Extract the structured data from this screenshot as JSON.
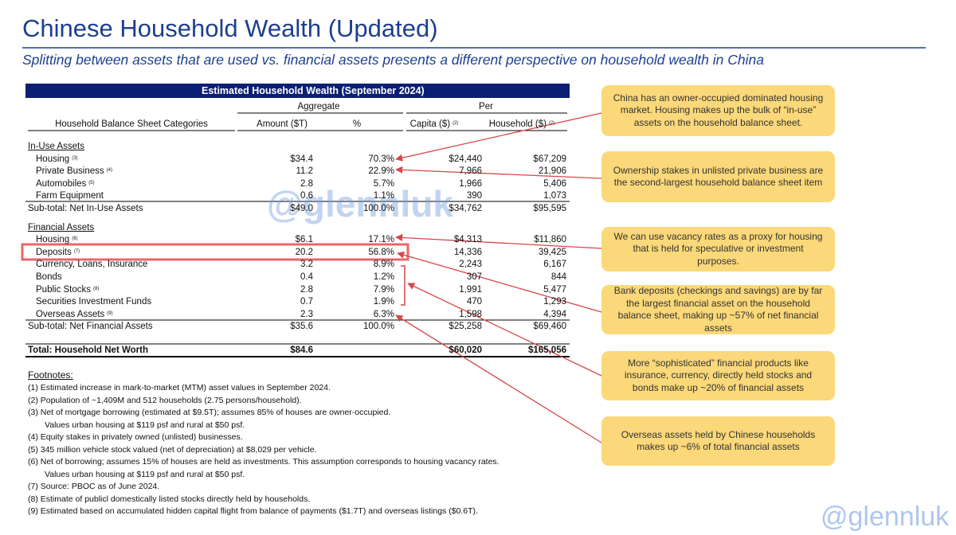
{
  "header": {
    "title": "Chinese Household Wealth (Updated)",
    "subtitle": "Splitting between assets that are used vs. financial assets presents a different perspective on household wealth in China"
  },
  "table": {
    "title": "Estimated Household Wealth (September 2024)",
    "group_headers": [
      "Aggregate",
      "Per"
    ],
    "columns": [
      "Household Balance Sheet Categories",
      "Amount ($T)",
      "%",
      "Capita ($)",
      "Household ($)"
    ],
    "column_notes": [
      null,
      null,
      null,
      "(2)",
      "(2)"
    ],
    "sections": [
      {
        "title": "In-Use Assets",
        "rows": [
          {
            "label": "Housing",
            "note": "(3)",
            "cells": [
              "$34.4",
              "70.3%",
              "$24,440",
              "$67,209"
            ]
          },
          {
            "label": "Private Business",
            "note": "(4)",
            "cells": [
              "11.2",
              "22.9%",
              "7,966",
              "21,906"
            ]
          },
          {
            "label": "Automobiles",
            "note": "(5)",
            "cells": [
              "2.8",
              "5.7%",
              "1,966",
              "5,406"
            ]
          },
          {
            "label": "Farm Equipment",
            "note": null,
            "cells": [
              "0.6",
              "1.1%",
              "390",
              "1,073"
            ]
          }
        ],
        "subtotal": {
          "label": "Sub-total: Net In-Use Assets",
          "cells": [
            "$49.0",
            "100.0%",
            "$34,762",
            "$95,595"
          ]
        }
      },
      {
        "title": "Financial Assets",
        "rows": [
          {
            "label": "Housing",
            "note": "(6)",
            "cells": [
              "$6.1",
              "17.1%",
              "$4,313",
              "$11,860"
            ]
          },
          {
            "label": "Deposits",
            "note": "(7)",
            "cells": [
              "20.2",
              "56.8%",
              "14,336",
              "39,425"
            ]
          },
          {
            "label": "Currency, Loans, Insurance",
            "note": null,
            "cells": [
              "3.2",
              "8.9%",
              "2,243",
              "6,167"
            ]
          },
          {
            "label": "Bonds",
            "note": null,
            "cells": [
              "0.4",
              "1.2%",
              "307",
              "844"
            ]
          },
          {
            "label": "Public Stocks",
            "note": "(8)",
            "cells": [
              "2.8",
              "7.9%",
              "1,991",
              "5,477"
            ]
          },
          {
            "label": "Securities Investment Funds",
            "note": null,
            "cells": [
              "0.7",
              "1.9%",
              "470",
              "1,293"
            ]
          },
          {
            "label": "Overseas Assets",
            "note": "(9)",
            "cells": [
              "2.3",
              "6.3%",
              "1,598",
              "4,394"
            ]
          }
        ],
        "subtotal": {
          "label": "Sub-total: Net Financial Assets",
          "cells": [
            "$35.6",
            "100.0%",
            "$25,258",
            "$69,460"
          ]
        }
      }
    ],
    "total": {
      "label": "Total: Household Net Worth",
      "cells": [
        "$84.6",
        null,
        "$60,020",
        "$165,056"
      ]
    }
  },
  "footnotes": {
    "title": "Footnotes:",
    "items": [
      "(1) Estimated increase in mark-to-market (MTM) asset values in September 2024.",
      "(2) Population of ~1,409M and 512 households (2.75 persons/household).",
      "(3) Net of mortgage borrowing (estimated at $9.5T); assumes 85% of houses are owner-occupied.",
      "Values urban housing at $119 psf and rural at $50 psf.",
      "(4) Equity stakes in privately owned (unlisted) businesses.",
      "(5) 345 million vehicle stock valued (net of depreciation) at $8,029 per vehicle.",
      "(6) Net of borrowing; assumes 15% of houses are held as investments. This assumption corresponds to housing vacancy rates.",
      "Values urban housing at $119 psf and rural at $50 psf.",
      "(7) Source: PBOC as of June 2024.",
      "(8) Estimate of publicl domestically listed stocks directly held by households.",
      "(9) Estimated based on accumulated hidden capital flight from balance of payments ($1.7T) and overseas listings ($0.6T)."
    ]
  },
  "callouts": [
    "China has an owner-occupied dominated housing market. Housing makes up the bulk of “in-use” assets on the household balance sheet.",
    "Ownership stakes in unlisted private business are the second-largest household balance sheet item",
    "We can use vacancy rates as a proxy for housing that is held for speculative or investment purposes.",
    "Bank deposits (checkings and savings) are by far the largest financial asset on the household balance sheet, making up ~57% of net financial assets",
    "More “sophisticated” financial products like insurance, currency, directly held stocks and bonds make up ~20% of financial assets",
    "Overseas assets held by Chinese households makes up ~6% of total financial assets"
  ],
  "watermarks": [
    "@glennluk",
    "@glennluk"
  ]
}
